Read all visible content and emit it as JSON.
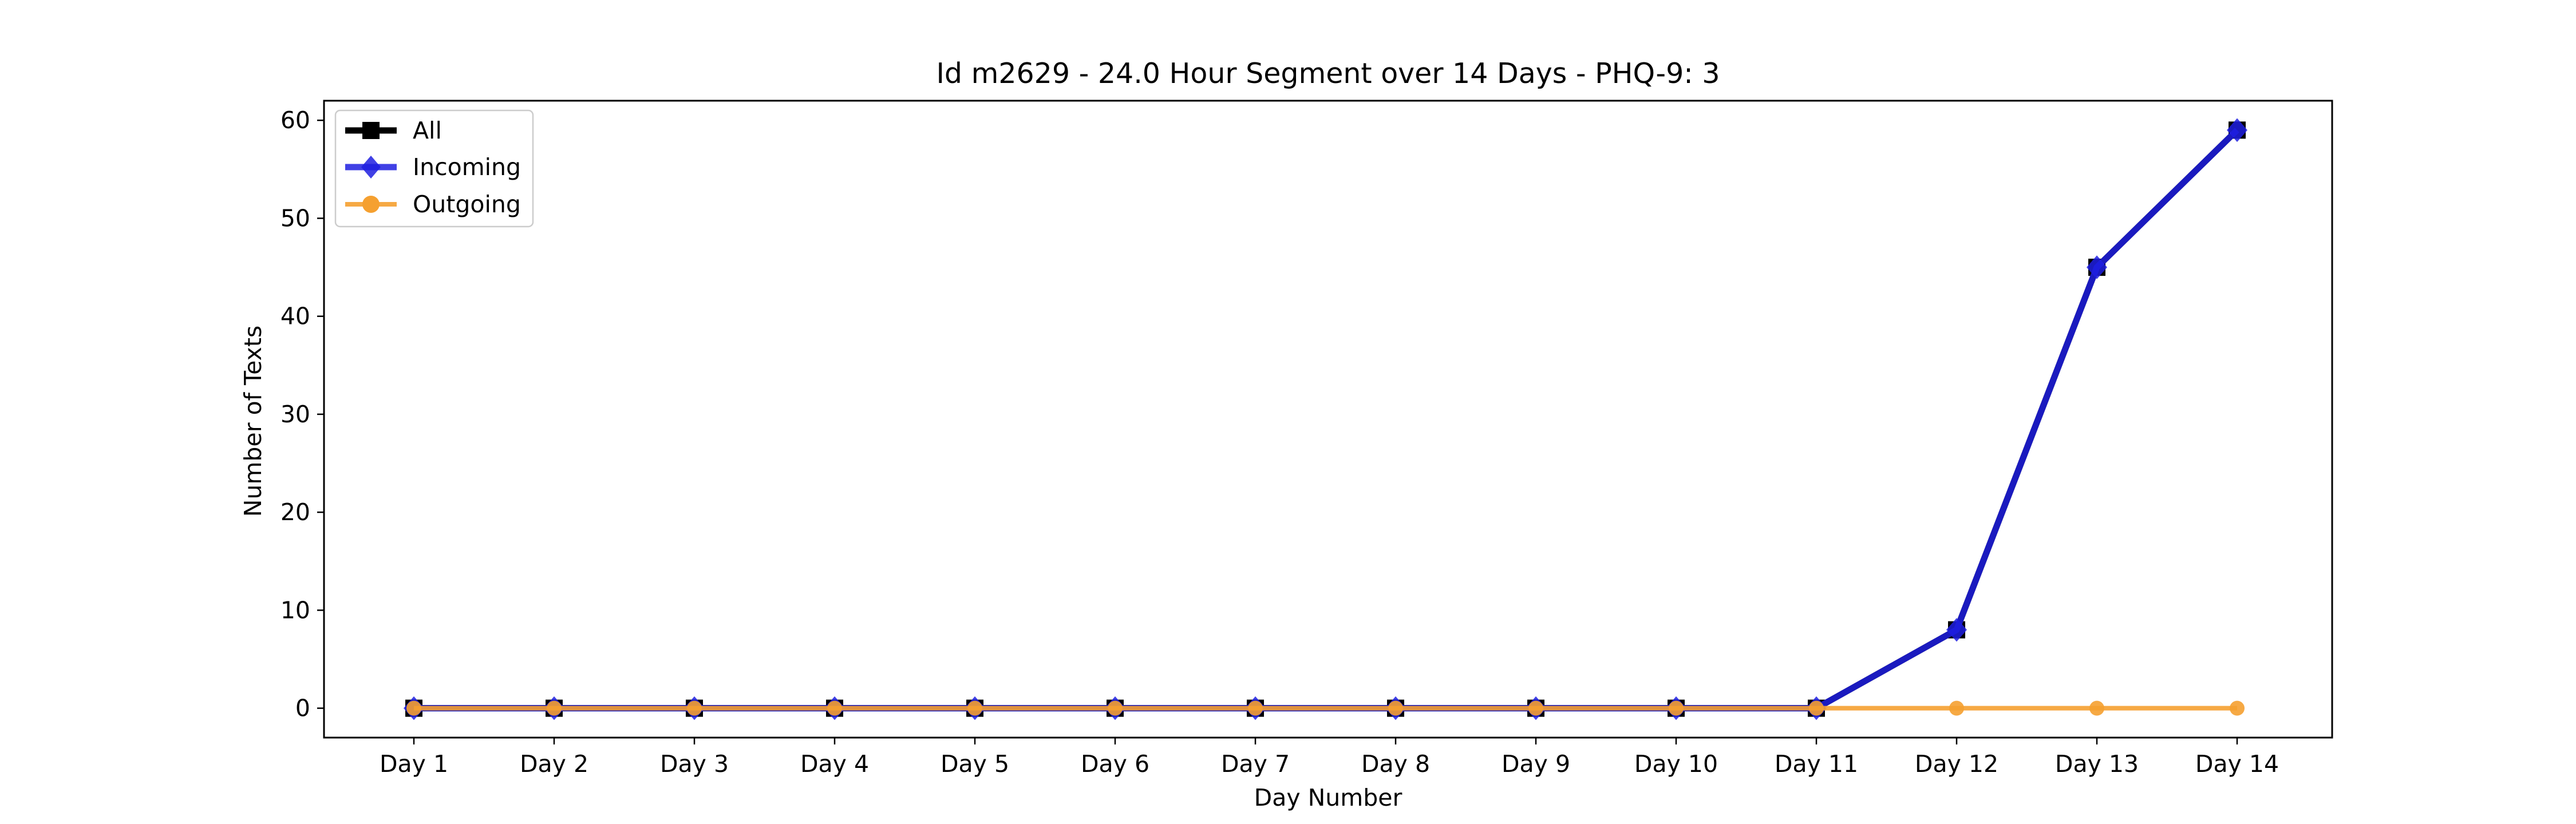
{
  "chart_data": {
    "type": "line",
    "title": "Id m2629 - 24.0 Hour Segment over 14 Days - PHQ-9: 3",
    "xlabel": "Day Number",
    "ylabel": "Number of Texts",
    "categories": [
      "Day 1",
      "Day 2",
      "Day 3",
      "Day 4",
      "Day 5",
      "Day 6",
      "Day 7",
      "Day 8",
      "Day 9",
      "Day 10",
      "Day 11",
      "Day 12",
      "Day 13",
      "Day 14"
    ],
    "ylim": [
      -3,
      62
    ],
    "yticks": [
      0,
      10,
      20,
      30,
      40,
      50,
      60
    ],
    "grid": false,
    "legend_position": "top-left",
    "series": [
      {
        "name": "All",
        "color": "#000000",
        "marker": "square",
        "values": [
          0,
          0,
          0,
          0,
          0,
          0,
          0,
          0,
          0,
          0,
          0,
          8,
          45,
          59
        ]
      },
      {
        "name": "Incoming",
        "color": "#1f1fe0",
        "marker": "diamond",
        "values": [
          0,
          0,
          0,
          0,
          0,
          0,
          0,
          0,
          0,
          0,
          0,
          8,
          45,
          59
        ]
      },
      {
        "name": "Outgoing",
        "color": "#f5a030",
        "marker": "circle",
        "values": [
          0,
          0,
          0,
          0,
          0,
          0,
          0,
          0,
          0,
          0,
          0,
          0,
          0,
          0
        ]
      }
    ]
  }
}
